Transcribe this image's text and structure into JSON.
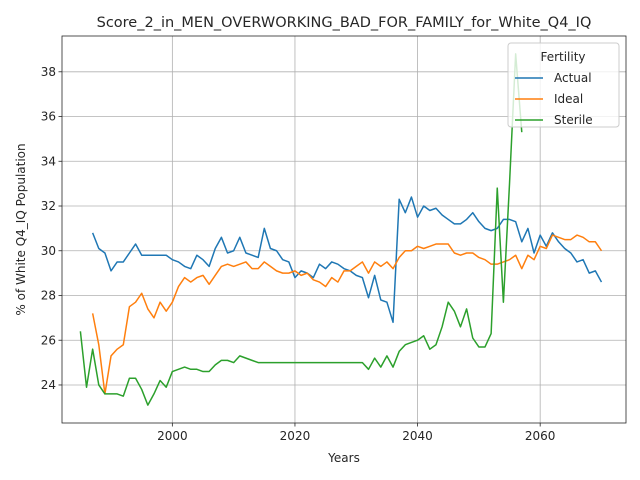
{
  "chart_data": {
    "type": "line",
    "title": "Score_2_in_MEN_OVERWORKING_BAD_FOR_FAMILY_for_White_Q4_IQ",
    "xlabel": "Years",
    "ylabel": "% of White Q4_IQ Population",
    "xlim": [
      1982,
      2074
    ],
    "ylim": [
      22.3,
      39.6
    ],
    "xticks": [
      2000,
      2020,
      2040,
      2060
    ],
    "yticks": [
      24,
      26,
      28,
      30,
      32,
      34,
      36,
      38
    ],
    "grid": true,
    "legend": {
      "title": "Fertility",
      "placement": "top-right"
    },
    "series": [
      {
        "name": "Actual",
        "color": "#1f77b4",
        "x": [
          1987,
          1988,
          1989,
          1990,
          1991,
          1992,
          1993,
          1994,
          1995,
          1996,
          1997,
          1998,
          1999,
          2000,
          2001,
          2002,
          2003,
          2004,
          2005,
          2006,
          2007,
          2008,
          2009,
          2010,
          2011,
          2012,
          2013,
          2014,
          2015,
          2016,
          2017,
          2018,
          2019,
          2020,
          2021,
          2022,
          2023,
          2024,
          2025,
          2026,
          2027,
          2028,
          2029,
          2030,
          2031,
          2032,
          2033,
          2034,
          2035,
          2036,
          2037,
          2038,
          2039,
          2040,
          2041,
          2042,
          2043,
          2044,
          2045,
          2046,
          2047,
          2048,
          2049,
          2050,
          2051,
          2052,
          2053,
          2054,
          2055,
          2056,
          2057,
          2058,
          2059,
          2060,
          2061,
          2062,
          2063,
          2064,
          2065,
          2066,
          2067,
          2068,
          2069,
          2070
        ],
        "y": [
          30.8,
          30.1,
          29.9,
          29.1,
          29.5,
          29.5,
          29.9,
          30.3,
          29.8,
          29.8,
          29.8,
          29.8,
          29.8,
          29.6,
          29.5,
          29.3,
          29.2,
          29.8,
          29.6,
          29.3,
          30.1,
          30.6,
          29.9,
          30.0,
          30.6,
          29.9,
          29.8,
          29.7,
          31.0,
          30.1,
          30.0,
          29.6,
          29.5,
          28.8,
          29.1,
          29.0,
          28.8,
          29.4,
          29.2,
          29.5,
          29.4,
          29.2,
          29.1,
          28.9,
          28.8,
          27.9,
          28.9,
          27.8,
          27.7,
          26.8,
          32.3,
          31.7,
          32.4,
          31.5,
          32.0,
          31.8,
          31.9,
          31.6,
          31.4,
          31.2,
          31.2,
          31.4,
          31.7,
          31.3,
          31.0,
          30.9,
          31.0,
          31.4,
          31.4,
          31.3,
          30.4,
          31.0,
          29.9,
          30.7,
          30.2,
          30.8,
          30.4,
          30.1,
          29.9,
          29.5,
          29.6,
          29.0,
          29.1,
          28.6
        ]
      },
      {
        "name": "Ideal",
        "color": "#ff7f0e",
        "x": [
          1987,
          1988,
          1989,
          1990,
          1991,
          1992,
          1993,
          1994,
          1995,
          1996,
          1997,
          1998,
          1999,
          2000,
          2001,
          2002,
          2003,
          2004,
          2005,
          2006,
          2007,
          2008,
          2009,
          2010,
          2011,
          2012,
          2013,
          2014,
          2015,
          2016,
          2017,
          2018,
          2019,
          2020,
          2021,
          2022,
          2023,
          2024,
          2025,
          2026,
          2027,
          2028,
          2029,
          2030,
          2031,
          2032,
          2033,
          2034,
          2035,
          2036,
          2037,
          2038,
          2039,
          2040,
          2041,
          2042,
          2043,
          2044,
          2045,
          2046,
          2047,
          2048,
          2049,
          2050,
          2051,
          2052,
          2053,
          2054,
          2055,
          2056,
          2057,
          2058,
          2059,
          2060,
          2061,
          2062,
          2063,
          2064,
          2065,
          2066,
          2067,
          2068,
          2069,
          2070
        ],
        "y": [
          27.2,
          25.8,
          23.6,
          25.3,
          25.6,
          25.8,
          27.5,
          27.7,
          28.1,
          27.4,
          27.0,
          27.7,
          27.3,
          27.7,
          28.4,
          28.8,
          28.6,
          28.8,
          28.9,
          28.5,
          28.9,
          29.3,
          29.4,
          29.3,
          29.4,
          29.5,
          29.2,
          29.2,
          29.5,
          29.3,
          29.1,
          29.0,
          29.0,
          29.1,
          28.9,
          29.0,
          28.7,
          28.6,
          28.4,
          28.8,
          28.6,
          29.1,
          29.1,
          29.3,
          29.5,
          29.0,
          29.5,
          29.3,
          29.5,
          29.2,
          29.7,
          30.0,
          30.0,
          30.2,
          30.1,
          30.2,
          30.3,
          30.3,
          30.3,
          29.9,
          29.8,
          29.9,
          29.9,
          29.7,
          29.6,
          29.4,
          29.4,
          29.5,
          29.6,
          29.8,
          29.2,
          29.8,
          29.6,
          30.2,
          30.1,
          30.7,
          30.6,
          30.5,
          30.5,
          30.7,
          30.6,
          30.4,
          30.4,
          30.0
        ]
      },
      {
        "name": "Sterile",
        "color": "#2ca02c",
        "x": [
          1985,
          1986,
          1987,
          1988,
          1989,
          1990,
          1991,
          1992,
          1993,
          1994,
          1995,
          1996,
          1997,
          1998,
          1999,
          2000,
          2001,
          2002,
          2003,
          2004,
          2005,
          2006,
          2007,
          2008,
          2009,
          2010,
          2011,
          2012,
          2013,
          2014,
          2015,
          2016,
          2017,
          2018,
          2019,
          2020,
          2021,
          2022,
          2023,
          2024,
          2025,
          2026,
          2027,
          2028,
          2029,
          2030,
          2031,
          2032,
          2033,
          2034,
          2035,
          2036,
          2037,
          2038,
          2039,
          2040,
          2041,
          2042,
          2043,
          2044,
          2045,
          2046,
          2047,
          2048,
          2049,
          2050,
          2051,
          2052,
          2053,
          2054,
          2055,
          2056,
          2057
        ],
        "y": [
          26.4,
          23.9,
          25.6,
          24.0,
          23.6,
          23.6,
          23.6,
          23.5,
          24.3,
          24.3,
          23.8,
          23.1,
          23.6,
          24.2,
          23.9,
          24.6,
          24.7,
          24.8,
          24.7,
          24.7,
          24.6,
          24.6,
          24.9,
          25.1,
          25.1,
          25.0,
          25.3,
          25.2,
          25.1,
          25.0,
          25.0,
          25.0,
          25.0,
          25.0,
          25.0,
          25.0,
          25.0,
          25.0,
          25.0,
          25.0,
          25.0,
          25.0,
          25.0,
          25.0,
          25.0,
          25.0,
          25.0,
          24.7,
          25.2,
          24.8,
          25.3,
          24.8,
          25.5,
          25.8,
          25.9,
          26.0,
          26.2,
          25.6,
          25.8,
          26.6,
          27.7,
          27.3,
          26.6,
          27.4,
          26.1,
          25.7,
          25.7,
          26.3,
          32.8,
          27.7,
          33.0,
          38.8,
          35.3
        ]
      }
    ]
  }
}
